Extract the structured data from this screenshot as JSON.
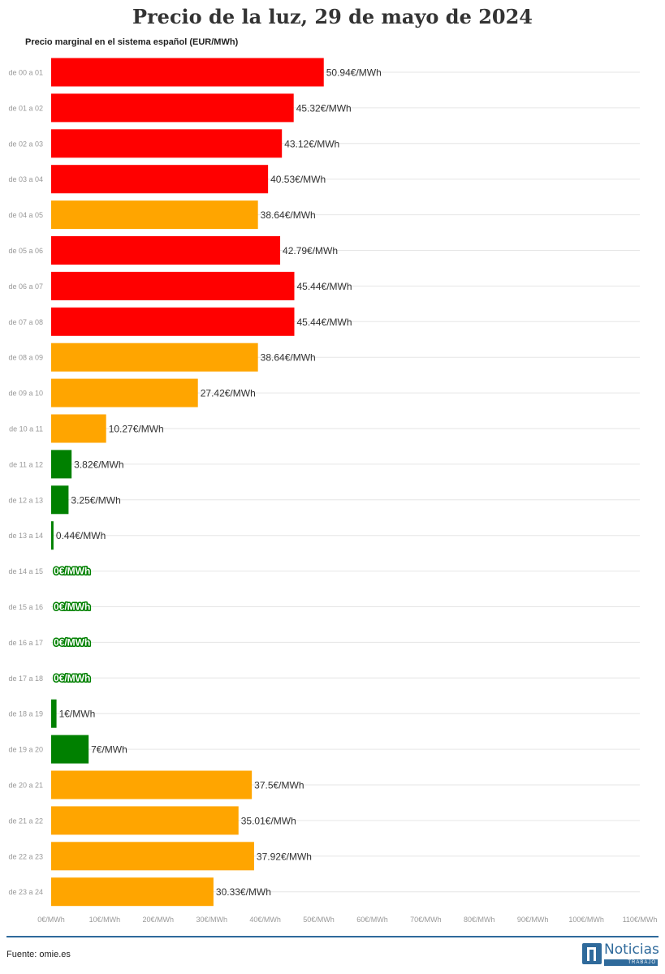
{
  "title": "Precio de la luz, 29 de mayo de 2024",
  "subtitle": "Precio marginal en el sistema español (EUR/MWh)",
  "source": "Fuente: omie.es",
  "logo": {
    "name": "Noticias",
    "tagline": "TRABAJO"
  },
  "colors": {
    "high": "#ff0000",
    "medium": "#ffa500",
    "low": "#008000",
    "grid": "#e6e6e6",
    "axis_text": "#999999",
    "label_text": "#333333",
    "brand": "#2f6a9b"
  },
  "chart_data": {
    "type": "bar",
    "orientation": "horizontal",
    "title": "Precio de la luz, 29 de mayo de 2024",
    "subtitle": "Precio marginal en el sistema español (EUR/MWh)",
    "categories": [
      "de 00 a 01",
      "de 01 a 02",
      "de 02 a 03",
      "de 03 a 04",
      "de 04 a 05",
      "de 05 a 06",
      "de 06 a 07",
      "de 07 a 08",
      "de 08 a 09",
      "de 09 a 10",
      "de 10 a 11",
      "de 11 a 12",
      "de 12 a 13",
      "de 13 a 14",
      "de 14 a 15",
      "de 15 a 16",
      "de 16 a 17",
      "de 17 a 18",
      "de 18 a 19",
      "de 19 a 20",
      "de 20 a 21",
      "de 21 a 22",
      "de 22 a 23",
      "de 23 a 24"
    ],
    "values": [
      50.94,
      45.32,
      43.12,
      40.53,
      38.64,
      42.79,
      45.44,
      45.44,
      38.64,
      27.42,
      10.27,
      3.82,
      3.25,
      0.44,
      0,
      0,
      0,
      0,
      1,
      7,
      37.5,
      35.01,
      37.92,
      30.33
    ],
    "labels": [
      "50.94€/MWh",
      "45.32€/MWh",
      "43.12€/MWh",
      "40.53€/MWh",
      "38.64€/MWh",
      "42.79€/MWh",
      "45.44€/MWh",
      "45.44€/MWh",
      "38.64€/MWh",
      "27.42€/MWh",
      "10.27€/MWh",
      "3.82€/MWh",
      "3.25€/MWh",
      "0.44€/MWh",
      "0€/MWh",
      "0€/MWh",
      "0€/MWh",
      "0€/MWh",
      "1€/MWh",
      "7€/MWh",
      "37.5€/MWh",
      "35.01€/MWh",
      "37.92€/MWh",
      "30.33€/MWh"
    ],
    "bar_colors": [
      "high",
      "high",
      "high",
      "high",
      "medium",
      "high",
      "high",
      "high",
      "medium",
      "medium",
      "medium",
      "low",
      "low",
      "low",
      "low",
      "low",
      "low",
      "low",
      "low",
      "low",
      "medium",
      "medium",
      "medium",
      "medium"
    ],
    "xlim": [
      0,
      110
    ],
    "x_ticks": [
      "0€/MWh",
      "10€/MWh",
      "20€/MWh",
      "30€/MWh",
      "40€/MWh",
      "50€/MWh",
      "60€/MWh",
      "70€/MWh",
      "80€/MWh",
      "90€/MWh",
      "100€/MWh",
      "110€/MWh"
    ],
    "grid": true,
    "legend": "none"
  }
}
